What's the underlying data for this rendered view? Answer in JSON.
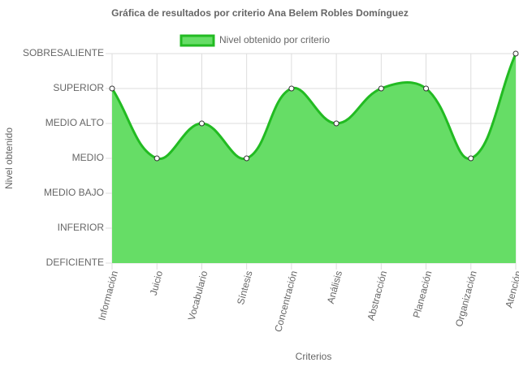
{
  "chart_data": {
    "type": "area",
    "title": "Gráfica de resultados por criterio Ana Belem Robles Domínguez",
    "x_label": "Criterios",
    "y_label": "Nivel obtenido",
    "categories": [
      "Información",
      "Juicio",
      "Vocabulario",
      "Síntesis",
      "Concentración",
      "Análisis",
      "Abstracción",
      "Planeación",
      "Organización",
      "Atención"
    ],
    "series": [
      {
        "name": "Nivel obtenido por criterio",
        "color": "#22bb22",
        "fill_color": "#66dd66",
        "values": [
          5,
          3,
          4,
          3,
          5,
          4,
          5,
          5,
          3,
          6
        ]
      }
    ],
    "ylim": [
      0,
      6
    ],
    "yticks": [
      {
        "value": 0,
        "label": "DEFICIENTE"
      },
      {
        "value": 1,
        "label": "INFERIOR"
      },
      {
        "value": 2,
        "label": "MEDIO BAJO"
      },
      {
        "value": 3,
        "label": "MEDIO"
      },
      {
        "value": 4,
        "label": "MEDIO ALTO"
      },
      {
        "value": 5,
        "label": "SUPERIOR"
      },
      {
        "value": 6,
        "label": "SOBRESALIENTE"
      }
    ],
    "grid": true,
    "legend": "top"
  }
}
